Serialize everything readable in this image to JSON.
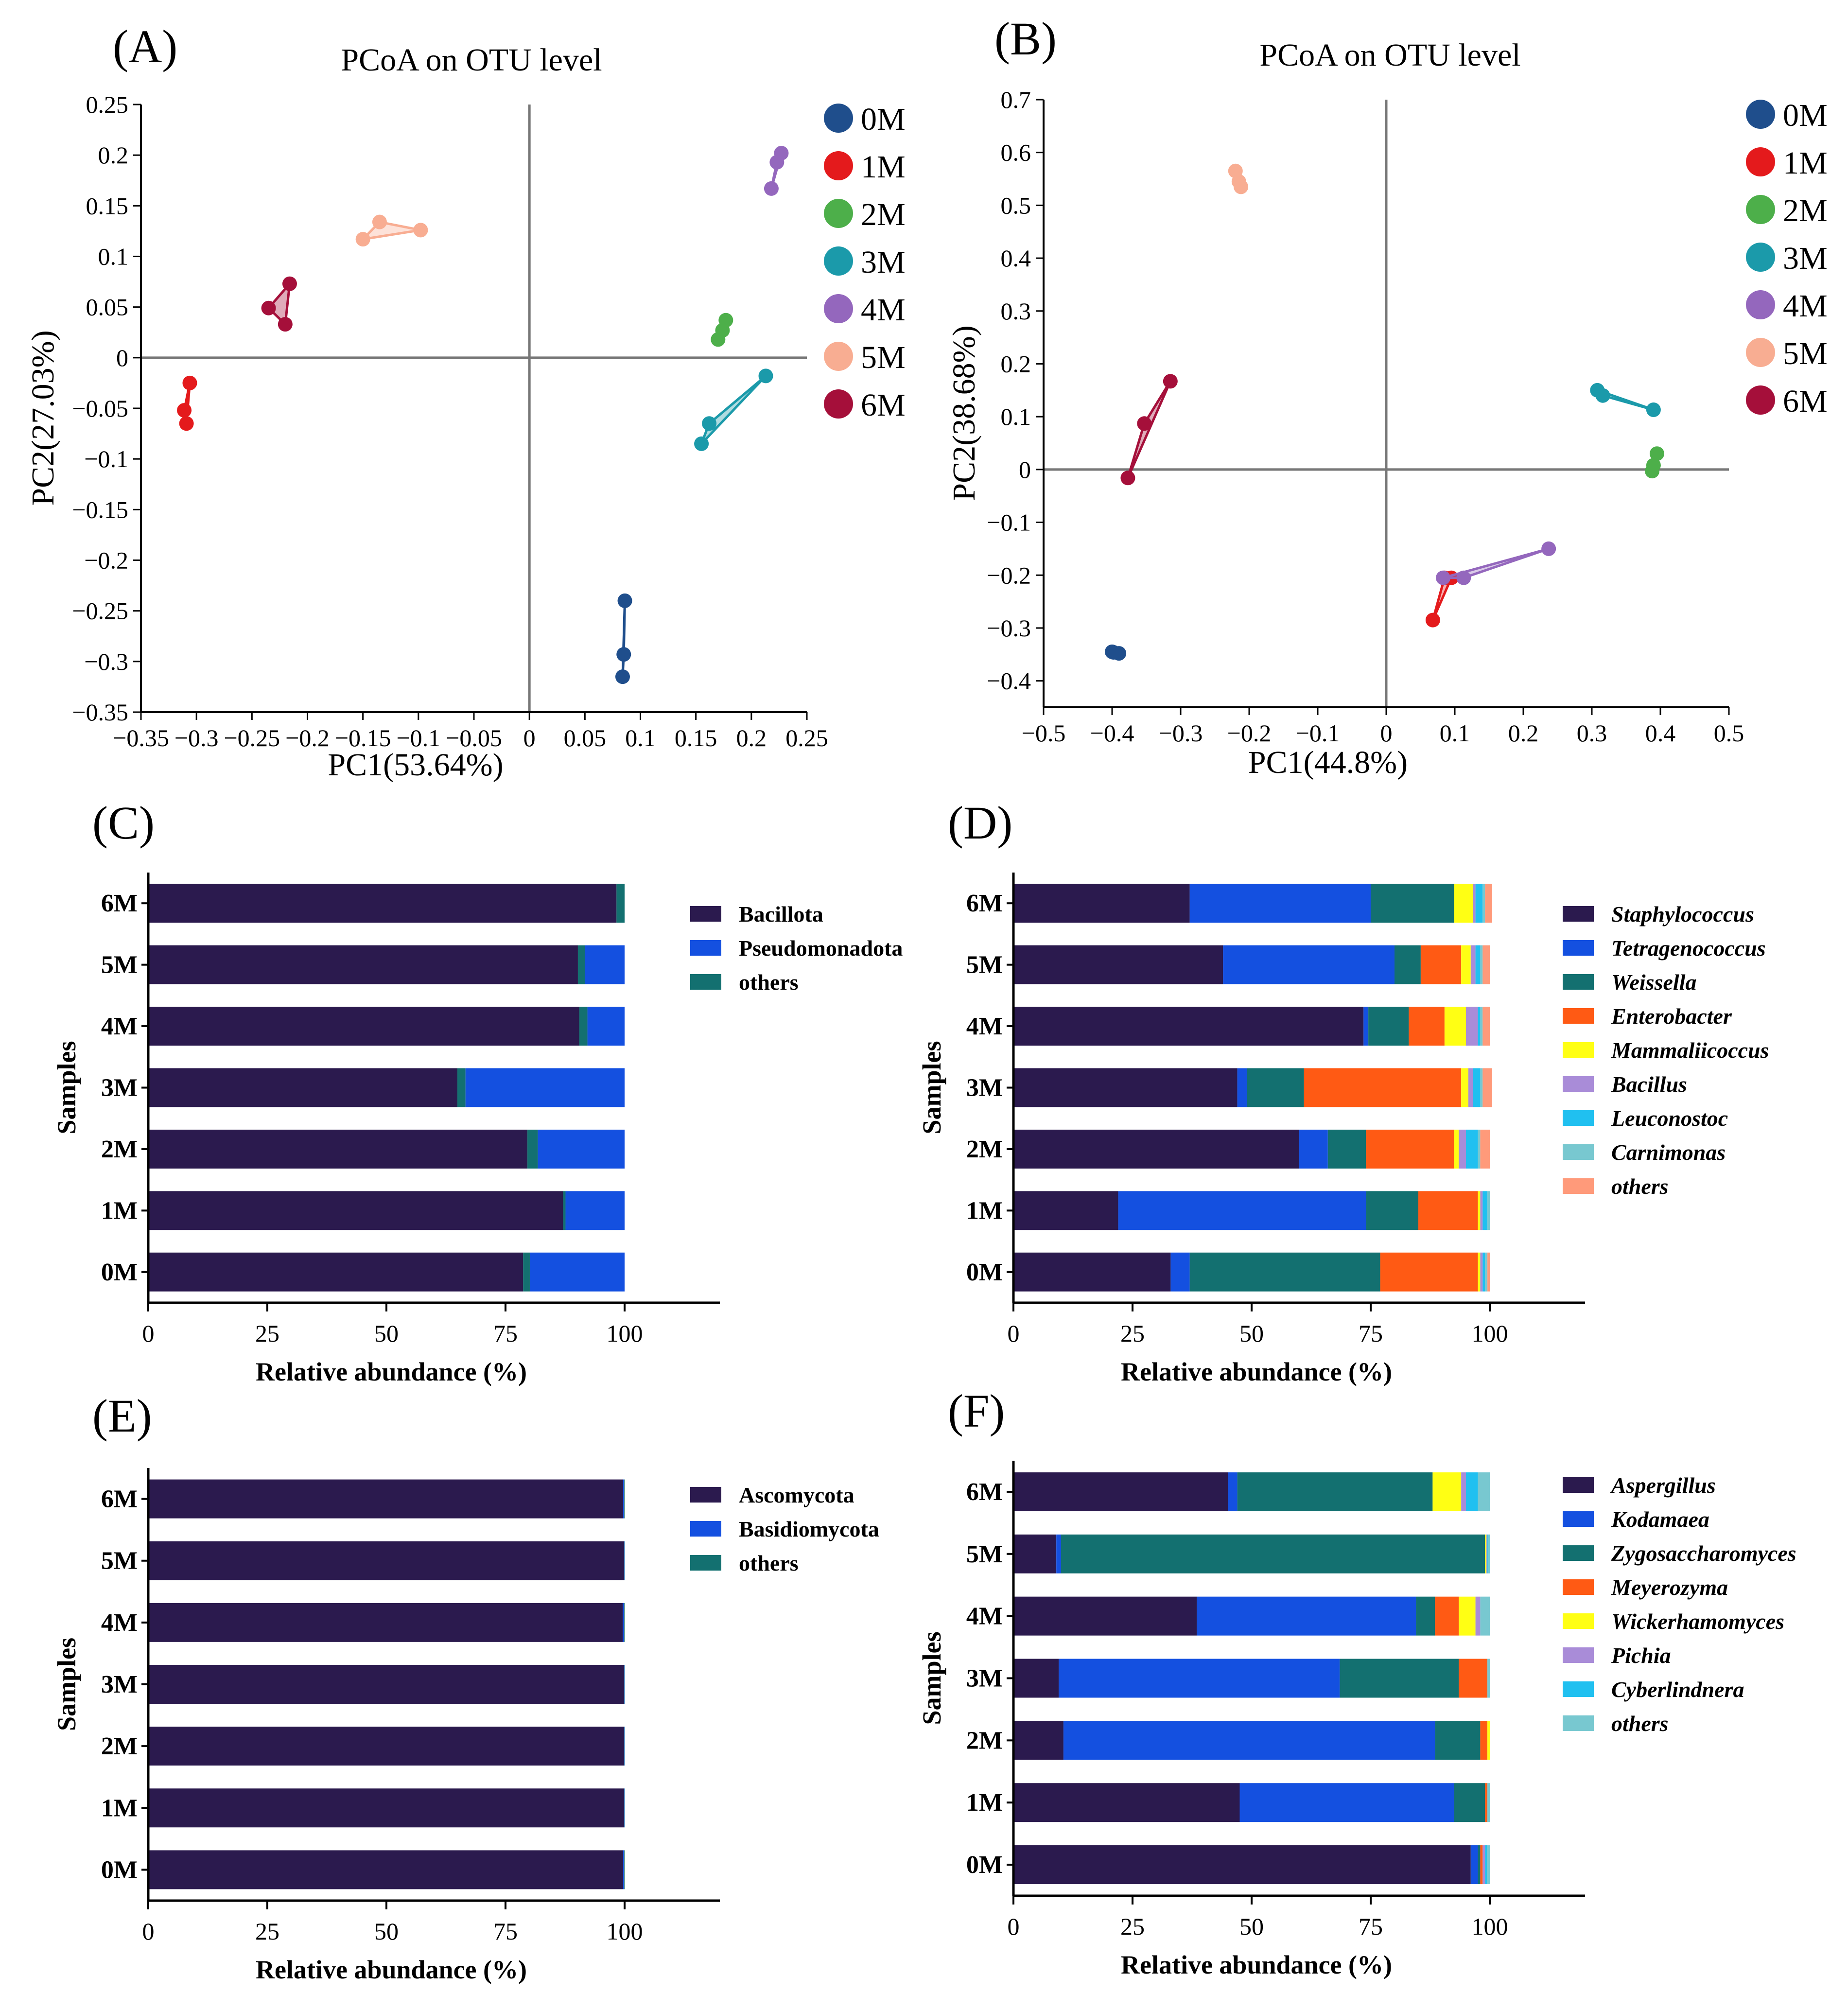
{
  "figure": {
    "colors": {
      "0M": "#1f4e8c",
      "1M": "#e41a1c",
      "2M": "#4daf4a",
      "3M": "#1b9aaa",
      "4M": "#9467bd",
      "5M": "#f8ad92",
      "6M": "#a50f3a",
      "dark": "#2b1a4e",
      "blue": "#1450e0",
      "teal": "#137070",
      "orange": "#ff5a14",
      "yellow": "#ffff14",
      "lilac": "#a98cd8",
      "cyan": "#20c0f0",
      "ltcyan": "#78c8d0",
      "salmon": "#ff9a7a",
      "axis": "#000000",
      "zero": "#777777"
    },
    "panel_labels": [
      "(A)",
      "(B)",
      "(C)",
      "(D)",
      "(E)",
      "(F)"
    ]
  },
  "chart_data": [
    {
      "id": "A",
      "type": "scatter",
      "title": "PCoA on OTU level",
      "xlabel": "PC1(53.64%)",
      "ylabel": "PC2(27.03%)",
      "xlim": [
        -0.35,
        0.25
      ],
      "ylim": [
        -0.35,
        0.25
      ],
      "xticks": [
        "−0.35",
        "−0.3",
        "−0.25",
        "−0.2",
        "−0.15",
        "−0.1",
        "−0.05",
        "0",
        "0.05",
        "0.1",
        "0.15",
        "0.2",
        "0.25"
      ],
      "yticks": [
        "0.25",
        "0.2",
        "0.15",
        "0.1",
        "0.05",
        "0",
        "−0.05",
        "−0.1",
        "−0.15",
        "−0.2",
        "−0.25",
        "−0.3",
        "−0.35"
      ],
      "legend": [
        "0M",
        "1M",
        "2M",
        "3M",
        "4M",
        "5M",
        "6M"
      ],
      "series": [
        {
          "name": "0M",
          "points": [
            [
              0.086,
              -0.24
            ],
            [
              0.085,
              -0.293
            ],
            [
              0.084,
              -0.315
            ]
          ]
        },
        {
          "name": "1M",
          "points": [
            [
              -0.306,
              -0.025
            ],
            [
              -0.311,
              -0.052
            ],
            [
              -0.309,
              -0.065
            ]
          ]
        },
        {
          "name": "2M",
          "points": [
            [
              0.177,
              0.037
            ],
            [
              0.174,
              0.027
            ],
            [
              0.17,
              0.018
            ]
          ]
        },
        {
          "name": "3M",
          "points": [
            [
              0.213,
              -0.018
            ],
            [
              0.162,
              -0.065
            ],
            [
              0.155,
              -0.085
            ]
          ]
        },
        {
          "name": "4M",
          "points": [
            [
              0.227,
              0.202
            ],
            [
              0.223,
              0.193
            ],
            [
              0.218,
              0.167
            ]
          ]
        },
        {
          "name": "5M",
          "points": [
            [
              -0.15,
              0.117
            ],
            [
              -0.135,
              0.134
            ],
            [
              -0.098,
              0.126
            ]
          ]
        },
        {
          "name": "6M",
          "points": [
            [
              -0.216,
              0.073
            ],
            [
              -0.235,
              0.049
            ],
            [
              -0.22,
              0.033
            ]
          ]
        }
      ]
    },
    {
      "id": "B",
      "type": "scatter",
      "title": "PCoA on OTU level",
      "xlabel": "PC1(44.8%)",
      "ylabel": "PC2(38.68%)",
      "xlim": [
        -0.5,
        0.5
      ],
      "ylim": [
        -0.45,
        0.7
      ],
      "xticks": [
        "−0.5",
        "−0.4",
        "−0.3",
        "−0.2",
        "−0.1",
        "0",
        "0.1",
        "0.2",
        "0.3",
        "0.4",
        "0.5"
      ],
      "yticks": [
        "0.7",
        "0.6",
        "0.5",
        "0.4",
        "0.3",
        "0.2",
        "0.1",
        "0",
        "−0.1",
        "−0.2",
        "−0.3",
        "−0.4"
      ],
      "legend": [
        "0M",
        "1M",
        "2M",
        "3M",
        "4M",
        "5M",
        "6M"
      ],
      "series": [
        {
          "name": "0M",
          "points": [
            [
              -0.4,
              -0.345
            ],
            [
              -0.398,
              -0.346
            ],
            [
              -0.39,
              -0.348
            ]
          ]
        },
        {
          "name": "1M",
          "points": [
            [
              0.068,
              -0.285
            ],
            [
              0.085,
              -0.205
            ],
            [
              0.095,
              -0.205
            ]
          ]
        },
        {
          "name": "2M",
          "points": [
            [
              0.395,
              0.03
            ],
            [
              0.39,
              0.008
            ],
            [
              0.388,
              -0.003
            ]
          ]
        },
        {
          "name": "3M",
          "points": [
            [
              0.308,
              0.15
            ],
            [
              0.316,
              0.14
            ],
            [
              0.39,
              0.113
            ]
          ]
        },
        {
          "name": "4M",
          "points": [
            [
              0.083,
              -0.205
            ],
            [
              0.113,
              -0.205
            ],
            [
              0.237,
              -0.15
            ]
          ]
        },
        {
          "name": "5M",
          "points": [
            [
              -0.22,
              0.565
            ],
            [
              -0.215,
              0.545
            ],
            [
              -0.212,
              0.535
            ]
          ]
        },
        {
          "name": "6M",
          "points": [
            [
              -0.315,
              0.167
            ],
            [
              -0.353,
              0.087
            ],
            [
              -0.377,
              -0.016
            ]
          ]
        }
      ]
    },
    {
      "id": "C",
      "type": "bar",
      "orientation": "horizontal",
      "stacked": true,
      "xlabel": "Relative abundance (%)",
      "ylabel": "Samples",
      "xlim": [
        0,
        120
      ],
      "xticks": [
        "0",
        "25",
        "50",
        "75",
        "100"
      ],
      "categories": [
        "6M",
        "5M",
        "4M",
        "3M",
        "2M",
        "1M",
        "0M"
      ],
      "legend_italic": false,
      "series": [
        {
          "name": "Bacillota",
          "color": "#2b1a4e",
          "values": [
            98.3,
            90.2,
            90.5,
            64.9,
            79.6,
            87.1,
            78.7
          ]
        },
        {
          "name": "others",
          "color": "#137070",
          "values": [
            1.7,
            1.5,
            1.7,
            1.7,
            2.2,
            0.5,
            1.4
          ]
        },
        {
          "name": "Pseudomonadota",
          "color": "#1450e0",
          "values": [
            0.0,
            8.3,
            7.8,
            33.4,
            18.2,
            12.4,
            19.9
          ]
        }
      ],
      "order": [
        "Bacillota",
        "Pseudomonadota",
        "others"
      ]
    },
    {
      "id": "D",
      "type": "bar",
      "orientation": "horizontal",
      "stacked": true,
      "xlabel": "Relative abundance (%)",
      "ylabel": "Samples",
      "xlim": [
        0,
        120
      ],
      "xticks": [
        "0",
        "25",
        "50",
        "75",
        "100"
      ],
      "categories": [
        "6M",
        "5M",
        "4M",
        "3M",
        "2M",
        "1M",
        "0M"
      ],
      "legend_italic": true,
      "series": [
        {
          "name": "Staphylococcus",
          "color": "#2b1a4e",
          "values": [
            37,
            44,
            73.5,
            47,
            60,
            22,
            33
          ]
        },
        {
          "name": "Tetragenococcus",
          "color": "#1450e0",
          "values": [
            38,
            36,
            1,
            2,
            6,
            52,
            4
          ]
        },
        {
          "name": "Weissella",
          "color": "#137070",
          "values": [
            17.5,
            5.5,
            8.5,
            12,
            8,
            11,
            40
          ]
        },
        {
          "name": "Enterobacter",
          "color": "#ff5a14",
          "values": [
            0,
            8.5,
            7.5,
            33,
            18.5,
            12.5,
            20.5
          ]
        },
        {
          "name": "Mammaliicoccus",
          "color": "#ffff14",
          "values": [
            4,
            2,
            4.5,
            1.5,
            1,
            0.5,
            0.5
          ]
        },
        {
          "name": "Bacillus",
          "color": "#a98cd8",
          "values": [
            0.5,
            1,
            2.5,
            1,
            1.5,
            0.5,
            0.5
          ]
        },
        {
          "name": "Leuconostoc",
          "color": "#20c0f0",
          "values": [
            1.5,
            1,
            0.5,
            1.5,
            2.5,
            1,
            0.5
          ]
        },
        {
          "name": "Carnimonas",
          "color": "#78c8d0",
          "values": [
            0.5,
            0.5,
            0.5,
            0.5,
            0.5,
            0.5,
            0.5
          ]
        },
        {
          "name": "others",
          "color": "#ff9a7a",
          "values": [
            1.5,
            1.5,
            1.5,
            2,
            2,
            0,
            0.5
          ]
        }
      ]
    },
    {
      "id": "E",
      "type": "bar",
      "orientation": "horizontal",
      "stacked": true,
      "xlabel": "Relative abundance (%)",
      "ylabel": "Samples",
      "xlim": [
        0,
        120
      ],
      "xticks": [
        "0",
        "25",
        "50",
        "75",
        "100"
      ],
      "categories": [
        "6M",
        "5M",
        "4M",
        "3M",
        "2M",
        "1M",
        "0M"
      ],
      "legend_italic": false,
      "series": [
        {
          "name": "Ascomycota",
          "color": "#2b1a4e",
          "values": [
            99.7,
            99.9,
            99.6,
            99.9,
            99.9,
            99.9,
            99.7
          ]
        },
        {
          "name": "Basidiomycota",
          "color": "#1450e0",
          "values": [
            0.2,
            0.05,
            0.3,
            0.05,
            0.05,
            0.05,
            0.2
          ]
        },
        {
          "name": "others",
          "color": "#137070",
          "values": [
            0.1,
            0.05,
            0.1,
            0.05,
            0.05,
            0.05,
            0.1
          ]
        }
      ]
    },
    {
      "id": "F",
      "type": "bar",
      "orientation": "horizontal",
      "stacked": true,
      "xlabel": "Relative abundance (%)",
      "ylabel": "Samples",
      "xlim": [
        0,
        120
      ],
      "xticks": [
        "0",
        "25",
        "50",
        "75",
        "100"
      ],
      "categories": [
        "6M",
        "5M",
        "4M",
        "3M",
        "2M",
        "1M",
        "0M"
      ],
      "legend_italic": true,
      "series": [
        {
          "name": "Aspergillus",
          "color": "#2b1a4e",
          "values": [
            45,
            9,
            38.5,
            9.5,
            10.5,
            47.5,
            96
          ]
        },
        {
          "name": "Kodamaea",
          "color": "#1450e0",
          "values": [
            2,
            1,
            46,
            59,
            78,
            45,
            1.5
          ]
        },
        {
          "name": "Zygosaccharomyces",
          "color": "#137070",
          "values": [
            41,
            89,
            4,
            25,
            9.5,
            6.5,
            0.5
          ]
        },
        {
          "name": "Meyerozyma",
          "color": "#ff5a14",
          "values": [
            0,
            0,
            5,
            6,
            1.5,
            0.5,
            0.5
          ]
        },
        {
          "name": "Wickerhamomyces",
          "color": "#ffff14",
          "values": [
            6,
            0.3,
            3.5,
            0,
            0.5,
            0,
            0
          ]
        },
        {
          "name": "Pichia",
          "color": "#a98cd8",
          "values": [
            1,
            0.2,
            1,
            0,
            0,
            0,
            0.5
          ]
        },
        {
          "name": "Cyberlindnera",
          "color": "#20c0f0",
          "values": [
            2.5,
            0.2,
            0,
            0,
            0,
            0,
            0.5
          ]
        },
        {
          "name": "others",
          "color": "#78c8d0",
          "values": [
            2.5,
            0.3,
            2,
            0.5,
            0,
            0.5,
            0.5
          ]
        }
      ]
    }
  ]
}
